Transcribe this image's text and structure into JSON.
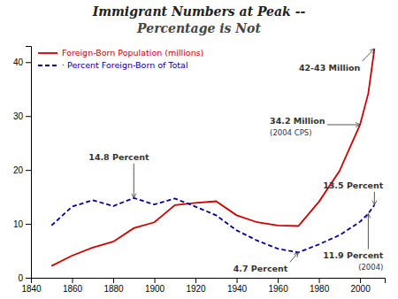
{
  "chart_data": {
    "type": "line",
    "title": "Immigrant Numbers at Peak --",
    "subtitle": "Percentage is Not",
    "x": [
      1850,
      1860,
      1870,
      1880,
      1890,
      1900,
      1910,
      1920,
      1930,
      1940,
      1950,
      1960,
      1970,
      1980,
      1990,
      2000,
      2004,
      2007
    ],
    "series": [
      {
        "name": "Foreign-Born Population (millions)",
        "color": "#CC0000",
        "line_style": "solid",
        "values": [
          2.2,
          4.1,
          5.6,
          6.7,
          9.2,
          10.3,
          13.5,
          13.9,
          14.2,
          11.6,
          10.3,
          9.7,
          9.6,
          14.1,
          19.8,
          28.4,
          34.2,
          42.5
        ]
      },
      {
        "name": "· Percent Foreign-Born of Total",
        "color": "#000099",
        "line_style": "dashed",
        "values": [
          9.7,
          13.2,
          14.4,
          13.3,
          14.8,
          13.6,
          14.7,
          13.2,
          11.6,
          8.8,
          6.9,
          5.4,
          4.7,
          6.2,
          7.9,
          10.4,
          11.9,
          13.5
        ]
      }
    ],
    "xlim": [
      1840,
      2012
    ],
    "ylim": [
      0,
      43
    ],
    "xticks": [
      1840,
      1860,
      1880,
      1900,
      1920,
      1940,
      1960,
      1980,
      2000
    ],
    "yticks": [
      0,
      10,
      20,
      30,
      40
    ],
    "grid": false,
    "legend": "upper left",
    "annotations": [
      {
        "text": "14.8 Percent",
        "x": 1890,
        "y": 14.8
      },
      {
        "text": "4.7 Percent",
        "x": 1970,
        "y": 4.7
      },
      {
        "text": "34.2 Million",
        "note": "(2004 CPS)",
        "x": 2000,
        "y": 28.4
      },
      {
        "text": "42-43 Million",
        "x": 2007,
        "y": 42.5
      },
      {
        "text": "13.5 Percent",
        "x": 2007,
        "y": 13.5
      },
      {
        "text": "11.9 Percent",
        "note": "(2004)",
        "x": 2004,
        "y": 11.9
      }
    ]
  }
}
